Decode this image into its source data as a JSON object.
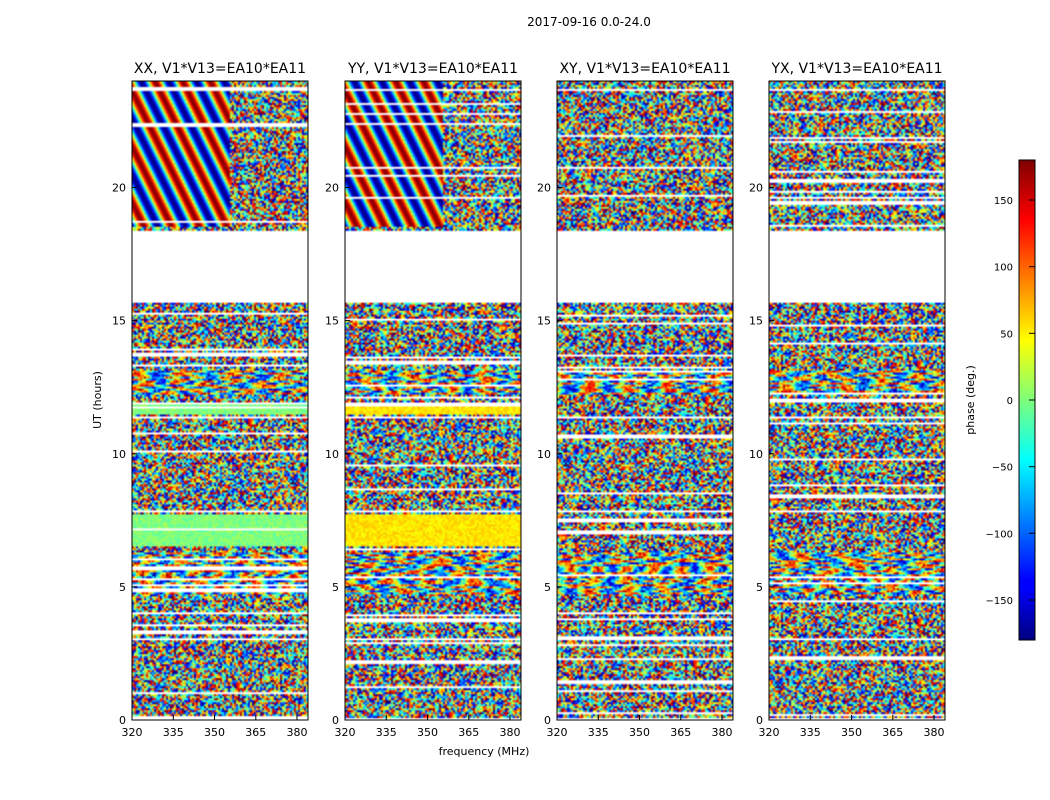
{
  "chart_data": {
    "type": "heatmap",
    "title": "2017-09-16 0.0-24.0",
    "xlabel": "frequency (MHz)",
    "ylabel": "UT (hours)",
    "xlim": [
      320,
      384
    ],
    "ylim": [
      0,
      24
    ],
    "x_ticks": [
      320,
      335,
      350,
      365,
      380
    ],
    "y_ticks": [
      0,
      5,
      10,
      15,
      20
    ],
    "panels": [
      {
        "title": "XX, V1*V13=EA10*EA11",
        "xtick_labels": [
          "320",
          "335",
          "350",
          "365",
          "380"
        ],
        "ytick_labels": [
          "0",
          "5",
          "10",
          "15",
          "20"
        ]
      },
      {
        "title": "YY, V1*V13=EA10*EA11",
        "xtick_labels": [
          "320",
          "335",
          "350",
          "365",
          "380"
        ],
        "ytick_labels": [
          "0",
          "5",
          "10",
          "15",
          "20"
        ]
      },
      {
        "title": "XY, V1*V13=EA10*EA11",
        "xtick_labels": [
          "320",
          "335",
          "350",
          "365",
          "380"
        ],
        "ytick_labels": [
          "0",
          "5",
          "10",
          "15",
          "20"
        ]
      },
      {
        "title": "YX, V1*V13=EA10*EA11",
        "xtick_labels": [
          "320",
          "335",
          "350",
          "365",
          "380"
        ],
        "ytick_labels": [
          "0",
          "5",
          "10",
          "15",
          "20"
        ]
      }
    ],
    "colorbar": {
      "label": "phase (deg.)",
      "range": [
        -180,
        180
      ],
      "ticks": [
        150,
        100,
        50,
        0,
        -50,
        -100,
        -150
      ],
      "tick_labels": [
        "150",
        "100",
        "50",
        "0",
        "−50",
        "−100",
        "−150"
      ],
      "colormap": "jet"
    },
    "flagged_ut_ranges": [
      [
        0.0,
        0.1
      ],
      [
        3.0,
        3.1
      ],
      [
        7.8,
        7.9
      ],
      [
        11.3,
        11.4
      ],
      [
        15.7,
        18.4
      ],
      [
        23.6,
        23.7
      ]
    ]
  }
}
